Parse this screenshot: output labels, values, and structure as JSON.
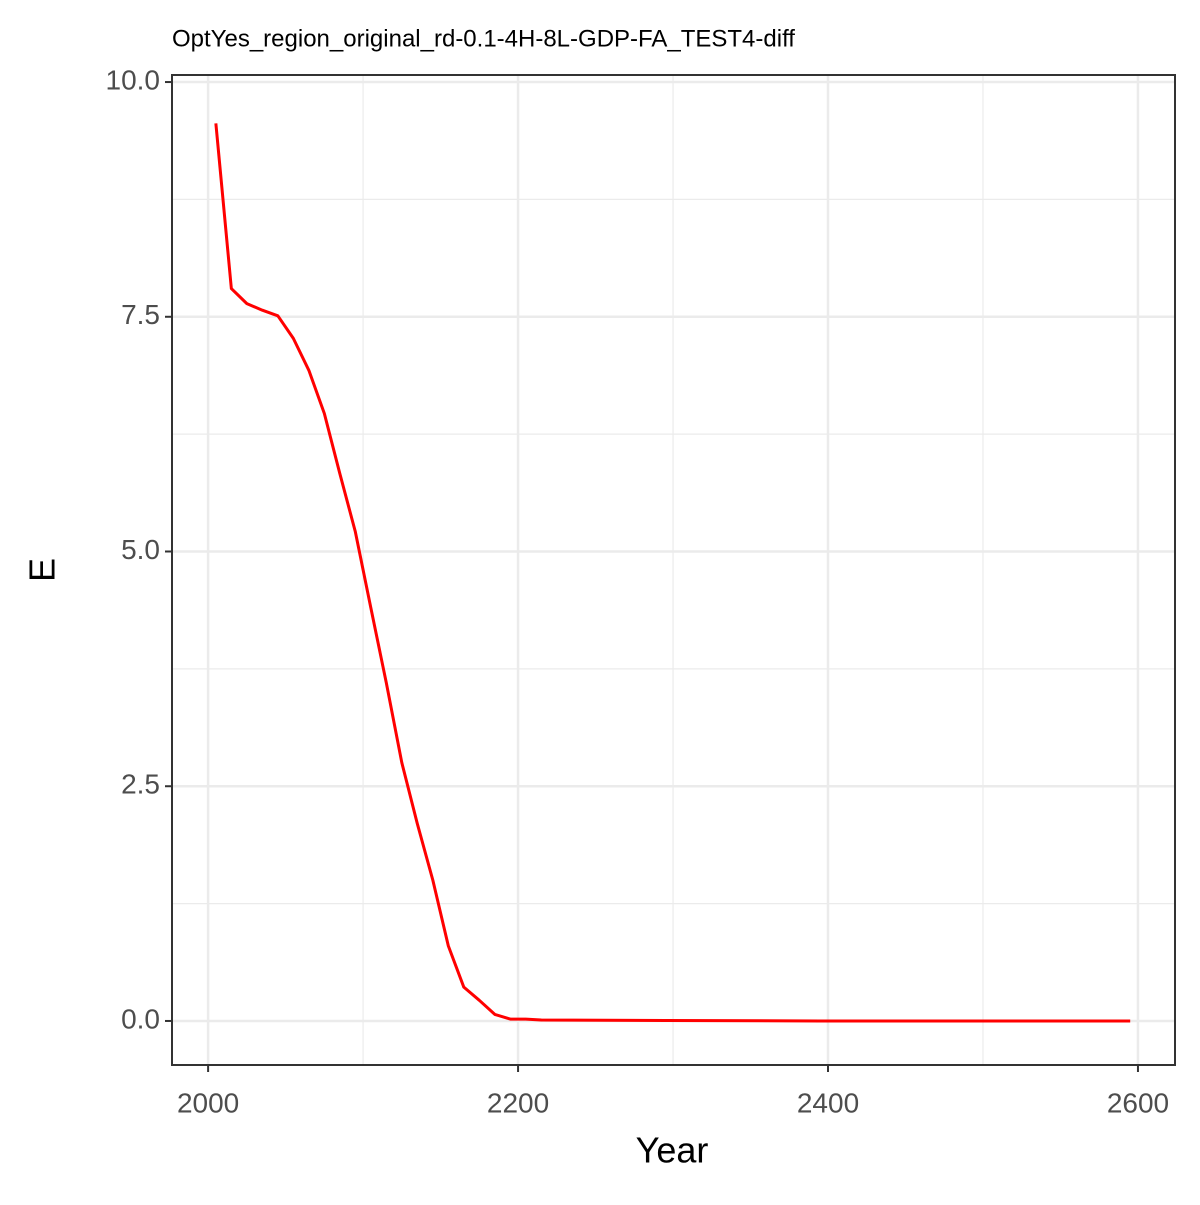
{
  "chart_data": {
    "type": "line",
    "title": "OptYes_region_original_rd-0.1-4H-8L-GDP-FA_TEST4-diff",
    "x_label": "Year",
    "y_label": "E",
    "x": [
      2005,
      2015,
      2025,
      2035,
      2045,
      2055,
      2065,
      2075,
      2085,
      2095,
      2105,
      2115,
      2125,
      2135,
      2145,
      2155,
      2165,
      2175,
      2185,
      2195,
      2205,
      2215,
      2295,
      2395,
      2495,
      2595
    ],
    "series": [
      {
        "name": "E",
        "color": "#ff0000",
        "values": [
          9.56,
          7.8,
          7.64,
          7.57,
          7.51,
          7.27,
          6.93,
          6.47,
          5.83,
          5.21,
          4.4,
          3.6,
          2.75,
          2.1,
          1.5,
          0.8,
          0.36,
          0.22,
          0.07,
          0.02,
          0.02,
          0.01,
          0.005,
          0,
          0,
          0
        ]
      }
    ],
    "xlim": [
      1976.7,
      2623.9
    ],
    "ylim": [
      -0.469,
      10.075
    ],
    "xticks": [
      2000,
      2200,
      2400,
      2600
    ],
    "yticks": [
      {
        "value": 0,
        "label": "0.0"
      },
      2.5,
      {
        "value": 5,
        "label": "5.0"
      },
      7.5,
      {
        "value": 10,
        "label": "10.0"
      }
    ],
    "x_minor_ticks": [
      2100,
      2300,
      2500
    ],
    "y_minor_ticks": [
      1.25,
      3.75,
      6.25,
      8.75
    ],
    "grid": true
  }
}
